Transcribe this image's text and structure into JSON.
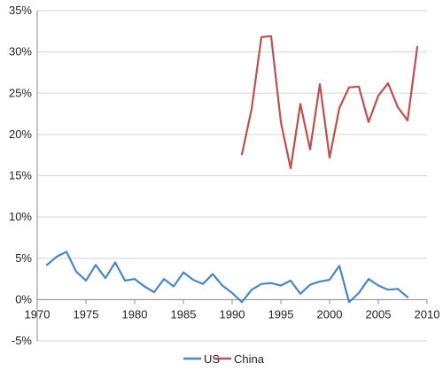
{
  "chart_data": {
    "type": "line",
    "title": "",
    "xlabel": "",
    "ylabel": "",
    "xlim": [
      1970,
      2010
    ],
    "ylim": [
      -5,
      35
    ],
    "xticks": [
      1970,
      1975,
      1980,
      1985,
      1990,
      1995,
      2000,
      2005,
      2010
    ],
    "xtick_labels": [
      "1970",
      "1975",
      "1980",
      "1985",
      "1990",
      "1995",
      "2000",
      "2005",
      "2010"
    ],
    "yticks": [
      -5,
      0,
      5,
      10,
      15,
      20,
      25,
      30,
      35
    ],
    "ytick_labels": [
      "-5%",
      "0%",
      "5%",
      "10%",
      "15%",
      "20%",
      "25%",
      "30%",
      "35%"
    ],
    "grid": "horizontal",
    "legend_position": "bottom",
    "series": [
      {
        "name": "US",
        "color": "#4a86c5",
        "x": [
          1971,
          1972,
          1973,
          1974,
          1975,
          1976,
          1977,
          1978,
          1979,
          1980,
          1981,
          1982,
          1983,
          1984,
          1985,
          1986,
          1987,
          1988,
          1989,
          1990,
          1991,
          1992,
          1993,
          1994,
          1995,
          1996,
          1997,
          1998,
          1999,
          2000,
          2001,
          2002,
          2003,
          2004,
          2005,
          2006,
          2007,
          2008
        ],
        "y": [
          4.2,
          5.2,
          5.8,
          3.4,
          2.3,
          4.2,
          2.6,
          4.5,
          2.3,
          2.5,
          1.6,
          0.9,
          2.5,
          1.6,
          3.3,
          2.4,
          1.9,
          3.1,
          1.7,
          0.8,
          -0.3,
          1.2,
          1.9,
          2.0,
          1.7,
          2.3,
          0.7,
          1.8,
          2.2,
          2.4,
          4.1,
          -0.3,
          0.8,
          2.5,
          1.7,
          1.2,
          1.3,
          0.3
        ]
      },
      {
        "name": "China",
        "color": "#c0504d",
        "x": [
          1991,
          1992,
          1993,
          1994,
          1995,
          1996,
          1997,
          1998,
          1999,
          2000,
          2001,
          2002,
          2003,
          2004,
          2005,
          2006,
          2007,
          2008,
          2009
        ],
        "y": [
          17.6,
          23.1,
          31.8,
          31.9,
          21.5,
          15.9,
          23.7,
          18.2,
          26.1,
          17.2,
          23.2,
          25.7,
          25.8,
          21.5,
          24.7,
          26.2,
          23.3,
          21.7,
          30.6
        ]
      }
    ]
  }
}
